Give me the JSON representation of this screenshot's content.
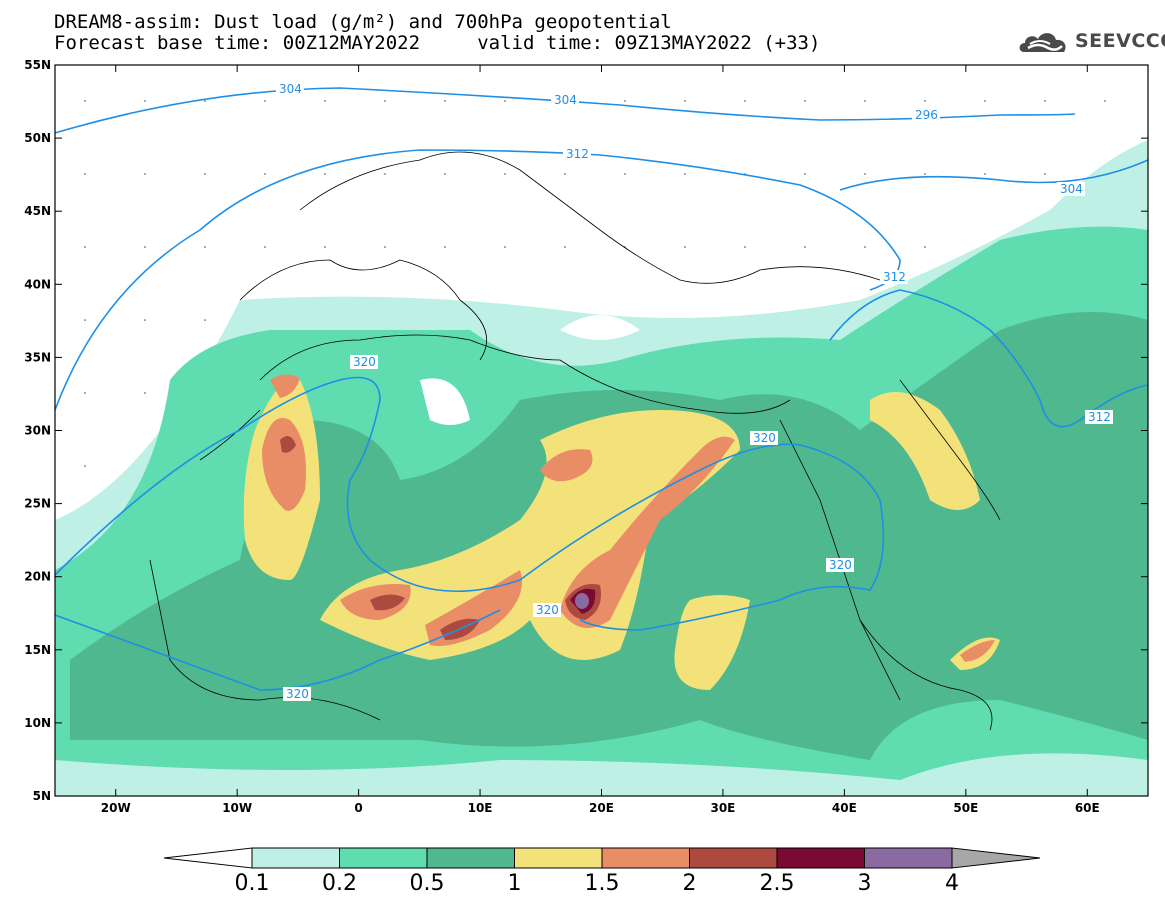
{
  "header": {
    "line1": "DREAM8-assim: Dust load (g/m²) and 700hPa geopotential",
    "line2": "Forecast base time: 00Z12MAY2022     valid time: 09Z13MAY2022 (+33)"
  },
  "logo": {
    "text": "SEEVCCC",
    "icon": "cloud-logo-icon"
  },
  "map": {
    "lon_range": [
      -25,
      65
    ],
    "lat_range": [
      5,
      55
    ],
    "lat_ticks": [
      "55N",
      "50N",
      "45N",
      "40N",
      "35N",
      "30N",
      "25N",
      "20N",
      "15N",
      "10N",
      "5N"
    ],
    "lon_ticks": [
      "20W",
      "10W",
      "0",
      "10E",
      "20E",
      "30E",
      "40E",
      "50E",
      "60E"
    ],
    "contour_labels": [
      "304",
      "304",
      "296",
      "312",
      "304",
      "312",
      "320",
      "320",
      "312",
      "320",
      "320",
      "320"
    ]
  },
  "legend": {
    "colors": [
      "#bff0e6",
      "#5fdcb0",
      "#4fb88e",
      "#f3e27a",
      "#e98d66",
      "#ad4a40",
      "#7a0a31",
      "#8a6aa0"
    ],
    "under_color": "#ffffff",
    "over_color": "#a7a7a7",
    "labels": [
      "0.1",
      "0.2",
      "0.5",
      "1",
      "1.5",
      "2",
      "2.5",
      "3",
      "4"
    ]
  }
}
